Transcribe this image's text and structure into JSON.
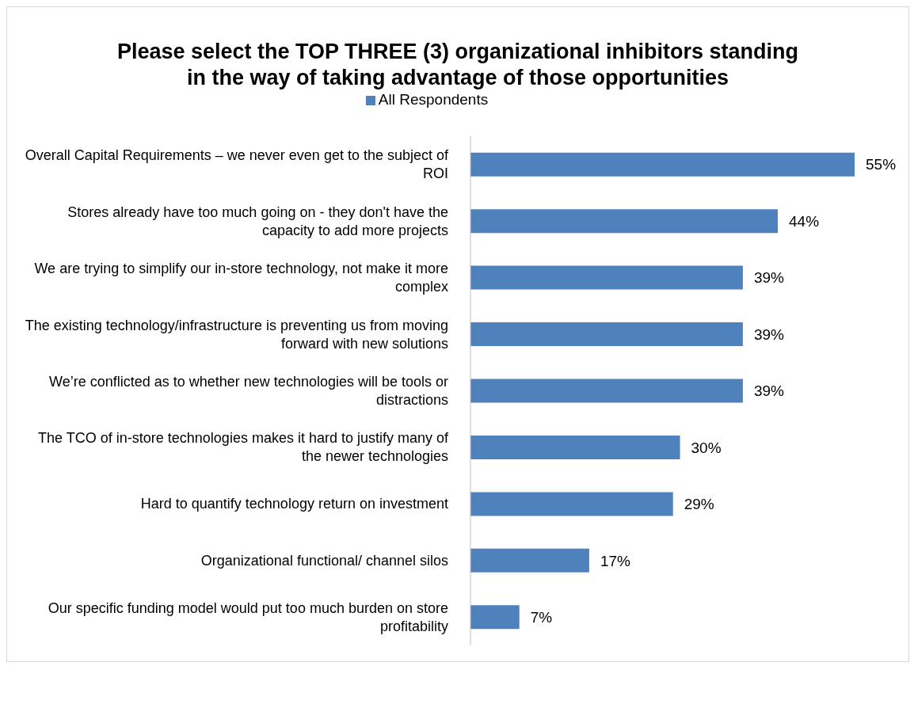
{
  "chart_data": {
    "type": "bar",
    "orientation": "horizontal",
    "title": "Please select the TOP THREE (3) organizational inhibitors standing in the way of taking advantage of those opportunities",
    "categories": [
      "Overall Capital Requirements – we never even get to the subject of ROI",
      "Stores already have too much going on - they don't have the capacity to add more projects",
      "We are trying to simplify our in-store technology, not make it more complex",
      "The existing technology/infrastructure is preventing us from moving forward with new solutions",
      "We’re conflicted as to whether new technologies will be tools or distractions",
      "The TCO of in-store technologies makes it hard to justify many of the newer technologies",
      "Hard to quantify technology return on investment",
      "Organizational functional/ channel silos",
      "Our specific funding model would put too much burden on store profitability"
    ],
    "series": [
      {
        "name": "All Respondents",
        "color": "#4f81bd",
        "values": [
          55,
          44,
          39,
          39,
          39,
          30,
          29,
          17,
          7
        ],
        "value_labels": [
          "55%",
          "44%",
          "39%",
          "39%",
          "39%",
          "30%",
          "29%",
          "17%",
          "7%"
        ]
      }
    ],
    "legend": "top"
  }
}
